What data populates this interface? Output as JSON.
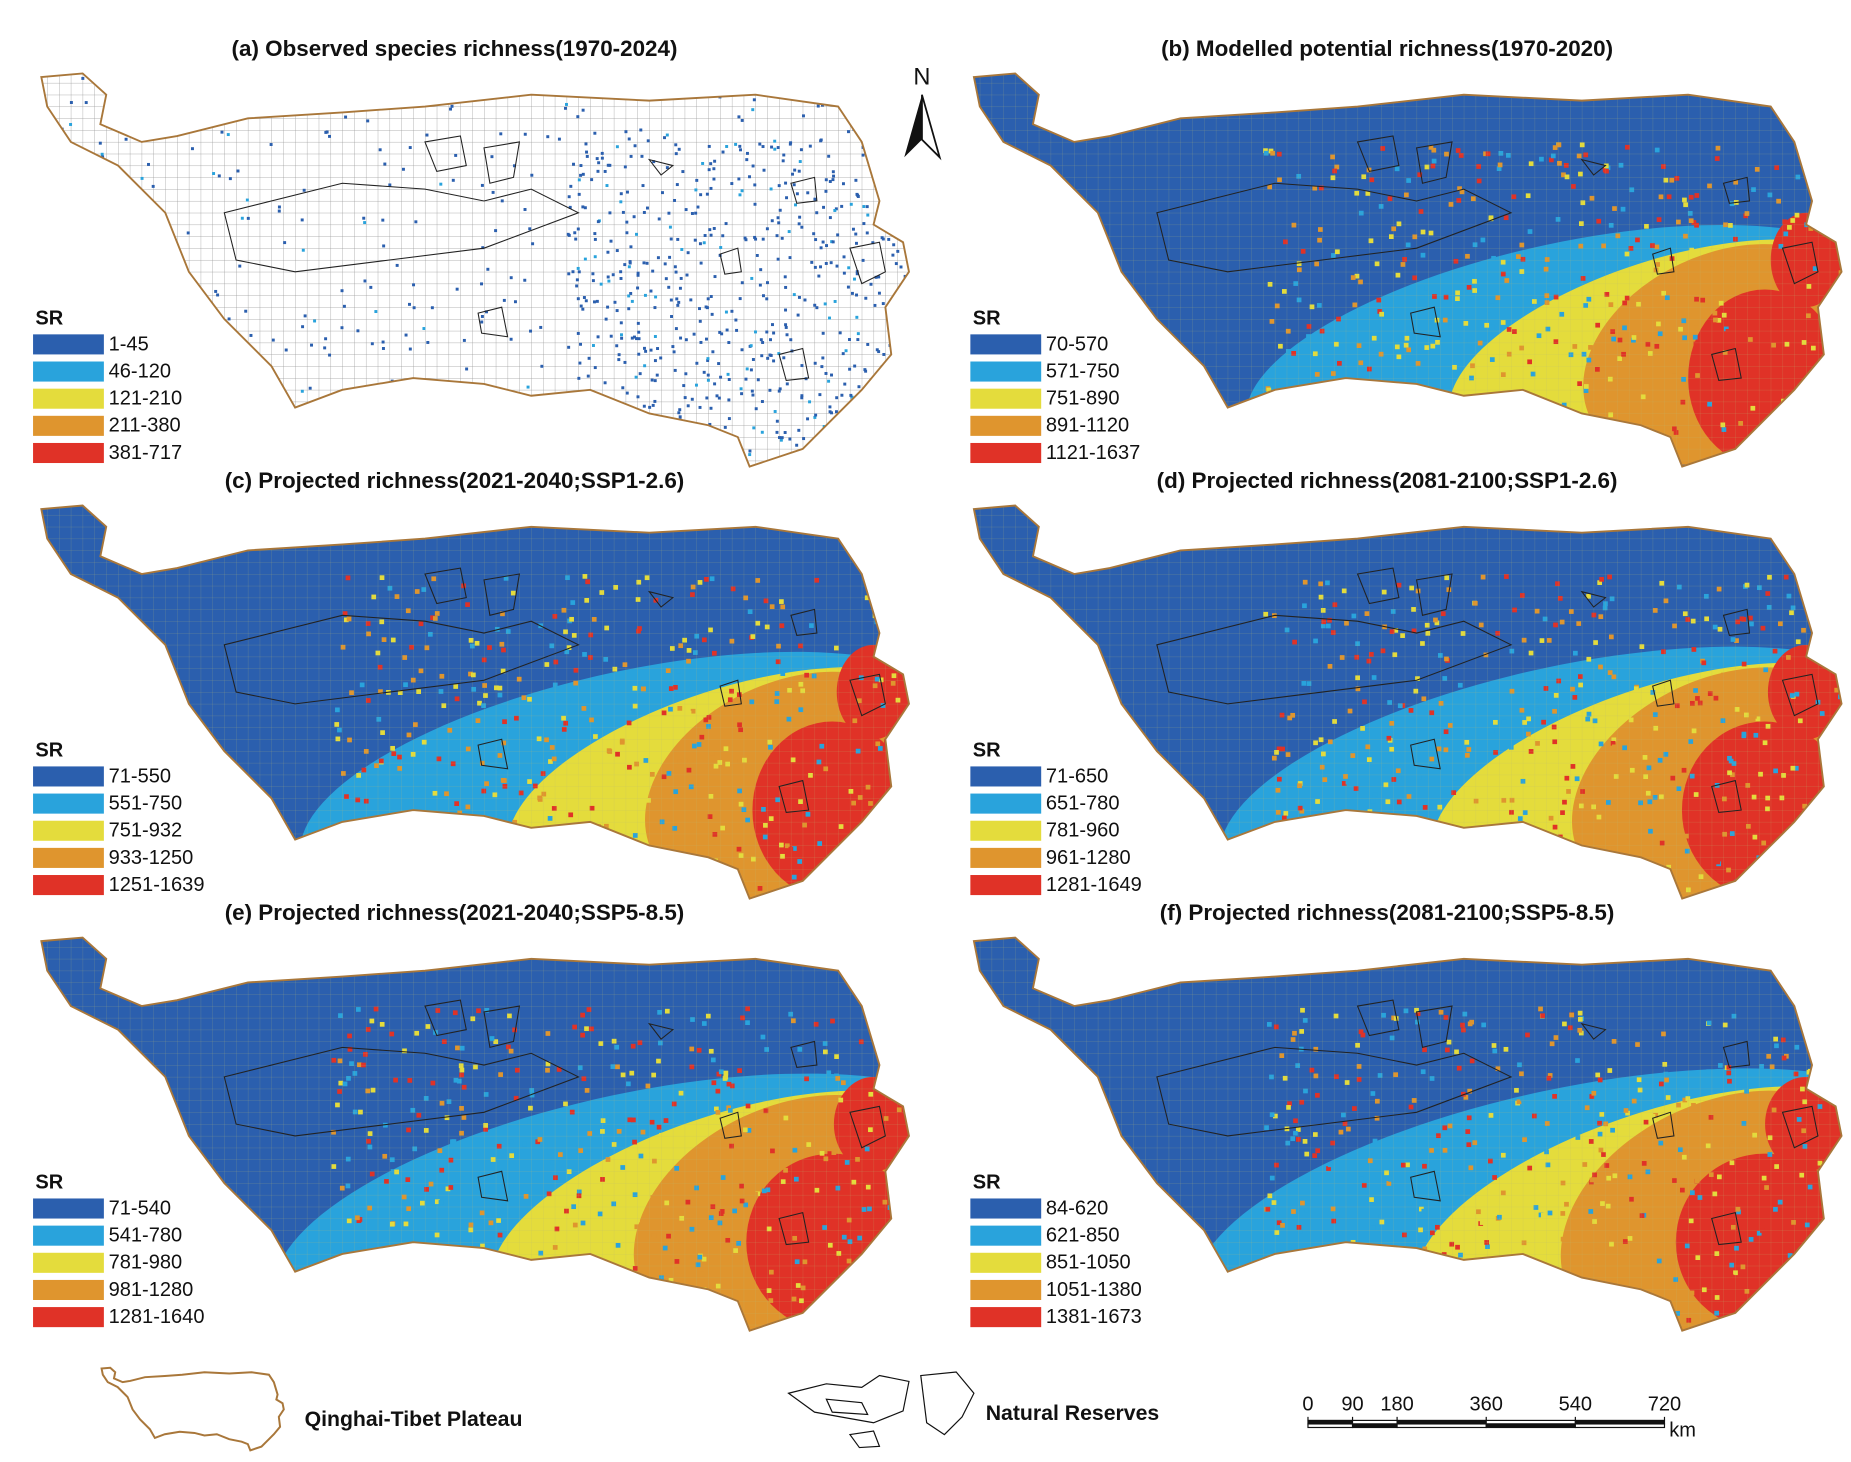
{
  "north": "N",
  "panels": [
    {
      "title": "(a) Observed species richness(1970-2024)",
      "legend_title": "SR",
      "classes": [
        {
          "label": "1-45",
          "color": "#2b5fae"
        },
        {
          "label": "46-120",
          "color": "#29a3dc"
        },
        {
          "label": "121-210",
          "color": "#e4dc3c"
        },
        {
          "label": "211-380",
          "color": "#df952e"
        },
        {
          "label": "381-717",
          "color": "#e03227"
        }
      ]
    },
    {
      "title": "(b) Modelled potential richness(1970-2020)",
      "legend_title": "SR",
      "classes": [
        {
          "label": "70-570",
          "color": "#2b5fae"
        },
        {
          "label": "571-750",
          "color": "#29a3dc"
        },
        {
          "label": "751-890",
          "color": "#e4dc3c"
        },
        {
          "label": "891-1120",
          "color": "#df952e"
        },
        {
          "label": "1121-1637",
          "color": "#e03227"
        }
      ]
    },
    {
      "title": "(c) Projected richness(2021-2040;SSP1-2.6)",
      "legend_title": "SR",
      "classes": [
        {
          "label": "71-550",
          "color": "#2b5fae"
        },
        {
          "label": "551-750",
          "color": "#29a3dc"
        },
        {
          "label": "751-932",
          "color": "#e4dc3c"
        },
        {
          "label": "933-1250",
          "color": "#df952e"
        },
        {
          "label": "1251-1639",
          "color": "#e03227"
        }
      ]
    },
    {
      "title": "(d) Projected richness(2081-2100;SSP1-2.6)",
      "legend_title": "SR",
      "classes": [
        {
          "label": "71-650",
          "color": "#2b5fae"
        },
        {
          "label": "651-780",
          "color": "#29a3dc"
        },
        {
          "label": "781-960",
          "color": "#e4dc3c"
        },
        {
          "label": "961-1280",
          "color": "#df952e"
        },
        {
          "label": "1281-1649",
          "color": "#e03227"
        }
      ]
    },
    {
      "title": "(e) Projected richness(2021-2040;SSP5-8.5)",
      "legend_title": "SR",
      "classes": [
        {
          "label": "71-540",
          "color": "#2b5fae"
        },
        {
          "label": "541-780",
          "color": "#29a3dc"
        },
        {
          "label": "781-980",
          "color": "#e4dc3c"
        },
        {
          "label": "981-1280",
          "color": "#df952e"
        },
        {
          "label": "1281-1640",
          "color": "#e03227"
        }
      ]
    },
    {
      "title": "(f) Projected richness(2081-2100;SSP5-8.5)",
      "legend_title": "SR",
      "classes": [
        {
          "label": "84-620",
          "color": "#2b5fae"
        },
        {
          "label": "621-850",
          "color": "#29a3dc"
        },
        {
          "label": "851-1050",
          "color": "#e4dc3c"
        },
        {
          "label": "1051-1380",
          "color": "#df952e"
        },
        {
          "label": "1381-1673",
          "color": "#e03227"
        }
      ]
    }
  ],
  "footer": {
    "plateau_label": "Qinghai-Tibet Plateau",
    "reserves_label": "Natural Reserves",
    "scale": {
      "ticks": [
        0,
        90,
        180,
        360,
        540,
        720
      ],
      "unit": "km"
    }
  }
}
